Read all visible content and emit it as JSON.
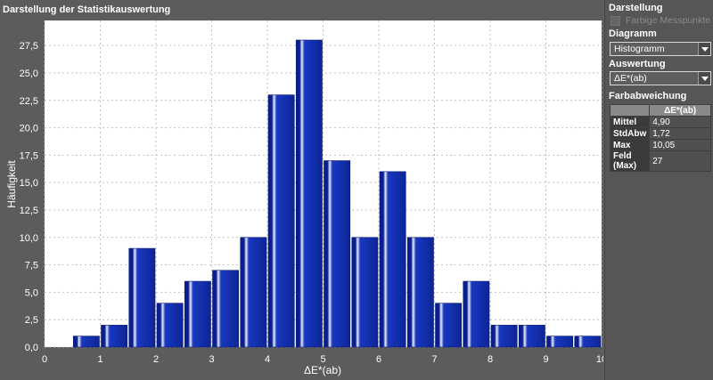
{
  "window": {
    "title": "Darstellung der Statistikauswertung"
  },
  "sidebar": {
    "display_section_title": "Darstellung",
    "colored_points_label": "Farbige Messpunkte",
    "colored_points_checked": false,
    "diagram_section_title": "Diagramm",
    "diagram_selected": "Histogramm",
    "evaluation_section_title": "Auswertung",
    "evaluation_selected": "ΔE*(ab)",
    "deviation_section_title": "Farbabweichung",
    "table": {
      "column_header": "ΔE*(ab)",
      "rows": [
        {
          "label": "Mittel",
          "value": "4,90"
        },
        {
          "label": "StdAbw",
          "value": "1,72"
        },
        {
          "label": "Max",
          "value": "10,05"
        },
        {
          "label": "Feld (Max)",
          "value": "27"
        }
      ]
    }
  },
  "chart_data": {
    "type": "bar",
    "xlabel": "ΔE*(ab)",
    "ylabel": "Häufigkeit",
    "xlim": [
      0,
      10
    ],
    "ylim": [
      0,
      30
    ],
    "x_ticks": [
      "0",
      "1",
      "2",
      "3",
      "4",
      "5",
      "6",
      "7",
      "8",
      "9",
      "10"
    ],
    "y_ticks": [
      "0,0",
      "2,5",
      "5,0",
      "7,5",
      "10,0",
      "12,5",
      "15,0",
      "17,5",
      "20,0",
      "22,5",
      "25,0",
      "27,5"
    ],
    "bin_width": 0.5,
    "bins": [
      {
        "x": 0.75,
        "value": 1
      },
      {
        "x": 1.25,
        "value": 2
      },
      {
        "x": 1.75,
        "value": 9
      },
      {
        "x": 2.25,
        "value": 4
      },
      {
        "x": 2.75,
        "value": 6
      },
      {
        "x": 3.25,
        "value": 7
      },
      {
        "x": 3.75,
        "value": 10
      },
      {
        "x": 4.25,
        "value": 23
      },
      {
        "x": 4.75,
        "value": 28
      },
      {
        "x": 5.25,
        "value": 17
      },
      {
        "x": 5.75,
        "value": 10
      },
      {
        "x": 6.25,
        "value": 16
      },
      {
        "x": 6.75,
        "value": 10
      },
      {
        "x": 7.25,
        "value": 4
      },
      {
        "x": 7.75,
        "value": 6
      },
      {
        "x": 8.25,
        "value": 2
      },
      {
        "x": 8.75,
        "value": 2
      },
      {
        "x": 9.25,
        "value": 1
      },
      {
        "x": 9.75,
        "value": 1
      }
    ],
    "grid": true,
    "colors": {
      "bar": "#1230a8",
      "bar_highlight": "#d0d8ff",
      "plot_bg": "#ffffff",
      "grid": "#c0c0c0"
    }
  }
}
